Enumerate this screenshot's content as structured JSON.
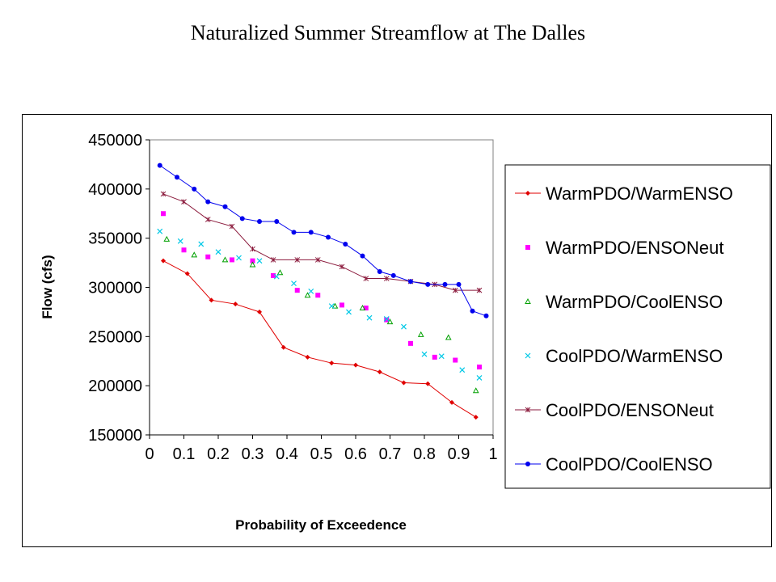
{
  "title": "Naturalized Summer Streamflow at The Dalles",
  "chart_data": {
    "type": "line",
    "xlabel": "Probability of Exceedence",
    "ylabel": "Flow (cfs)",
    "xlim": [
      0,
      1
    ],
    "ylim": [
      150000,
      450000
    ],
    "xticks": [
      "0",
      "0.1",
      "0.2",
      "0.3",
      "0.4",
      "0.5",
      "0.6",
      "0.7",
      "0.8",
      "0.9",
      "1"
    ],
    "yticks": [
      "450000",
      "400000",
      "350000",
      "300000",
      "250000",
      "200000",
      "150000"
    ],
    "grid": false,
    "legend_position": "right",
    "series": [
      {
        "name": "WarmPDO/WarmENSO",
        "color": "#e00000",
        "marker": "diamond",
        "line": true,
        "points": [
          [
            0.04,
            327000
          ],
          [
            0.11,
            314000
          ],
          [
            0.18,
            287000
          ],
          [
            0.25,
            283000
          ],
          [
            0.32,
            275000
          ],
          [
            0.39,
            239000
          ],
          [
            0.46,
            229000
          ],
          [
            0.53,
            223000
          ],
          [
            0.6,
            221000
          ],
          [
            0.67,
            214000
          ],
          [
            0.74,
            203000
          ],
          [
            0.81,
            202000
          ],
          [
            0.88,
            183000
          ],
          [
            0.95,
            168000
          ]
        ]
      },
      {
        "name": "WarmPDO/ENSONeut",
        "color": "#ff00ff",
        "marker": "square",
        "line": false,
        "points": [
          [
            0.04,
            375000
          ],
          [
            0.1,
            338000
          ],
          [
            0.17,
            331000
          ],
          [
            0.24,
            328000
          ],
          [
            0.3,
            327000
          ],
          [
            0.36,
            312000
          ],
          [
            0.43,
            297000
          ],
          [
            0.49,
            292000
          ],
          [
            0.56,
            282000
          ],
          [
            0.63,
            279000
          ],
          [
            0.69,
            267000
          ],
          [
            0.76,
            243000
          ],
          [
            0.83,
            229000
          ],
          [
            0.89,
            226000
          ],
          [
            0.96,
            219000
          ]
        ]
      },
      {
        "name": "WarmPDO/CoolENSO",
        "color": "#00a000",
        "marker": "triangle",
        "line": false,
        "points": [
          [
            0.05,
            349000
          ],
          [
            0.13,
            333000
          ],
          [
            0.22,
            328000
          ],
          [
            0.3,
            323000
          ],
          [
            0.38,
            315000
          ],
          [
            0.46,
            292000
          ],
          [
            0.54,
            281000
          ],
          [
            0.62,
            279000
          ],
          [
            0.7,
            265000
          ],
          [
            0.79,
            252000
          ],
          [
            0.87,
            249000
          ],
          [
            0.95,
            195000
          ]
        ]
      },
      {
        "name": "CoolPDO/WarmENSO",
        "color": "#00c8e6",
        "marker": "x",
        "line": false,
        "points": [
          [
            0.03,
            357000
          ],
          [
            0.09,
            347000
          ],
          [
            0.15,
            344000
          ],
          [
            0.2,
            336000
          ],
          [
            0.26,
            330000
          ],
          [
            0.32,
            327000
          ],
          [
            0.37,
            311000
          ],
          [
            0.42,
            304000
          ],
          [
            0.47,
            296000
          ],
          [
            0.53,
            281000
          ],
          [
            0.58,
            275000
          ],
          [
            0.64,
            269000
          ],
          [
            0.69,
            268000
          ],
          [
            0.74,
            260000
          ],
          [
            0.8,
            232000
          ],
          [
            0.85,
            230000
          ],
          [
            0.91,
            216000
          ],
          [
            0.96,
            208000
          ]
        ]
      },
      {
        "name": "CoolPDO/ENSONeut",
        "color": "#8b1a3c",
        "marker": "star",
        "line": true,
        "points": [
          [
            0.04,
            395000
          ],
          [
            0.1,
            387000
          ],
          [
            0.17,
            369000
          ],
          [
            0.24,
            362000
          ],
          [
            0.3,
            339000
          ],
          [
            0.36,
            328000
          ],
          [
            0.43,
            328000
          ],
          [
            0.49,
            328000
          ],
          [
            0.56,
            321000
          ],
          [
            0.63,
            309000
          ],
          [
            0.69,
            309000
          ],
          [
            0.76,
            306000
          ],
          [
            0.83,
            303000
          ],
          [
            0.89,
            297000
          ],
          [
            0.96,
            297000
          ]
        ]
      },
      {
        "name": "CoolPDO/CoolENSO",
        "color": "#0000ee",
        "marker": "circle",
        "line": true,
        "points": [
          [
            0.03,
            424000
          ],
          [
            0.08,
            412000
          ],
          [
            0.13,
            400000
          ],
          [
            0.17,
            387000
          ],
          [
            0.22,
            382000
          ],
          [
            0.27,
            370000
          ],
          [
            0.32,
            367000
          ],
          [
            0.37,
            367000
          ],
          [
            0.42,
            356000
          ],
          [
            0.47,
            356000
          ],
          [
            0.52,
            351000
          ],
          [
            0.57,
            344000
          ],
          [
            0.62,
            332000
          ],
          [
            0.67,
            316000
          ],
          [
            0.71,
            312000
          ],
          [
            0.76,
            306000
          ],
          [
            0.81,
            303000
          ],
          [
            0.86,
            303000
          ],
          [
            0.9,
            303000
          ],
          [
            0.94,
            276000
          ],
          [
            0.98,
            271000
          ]
        ]
      }
    ]
  }
}
